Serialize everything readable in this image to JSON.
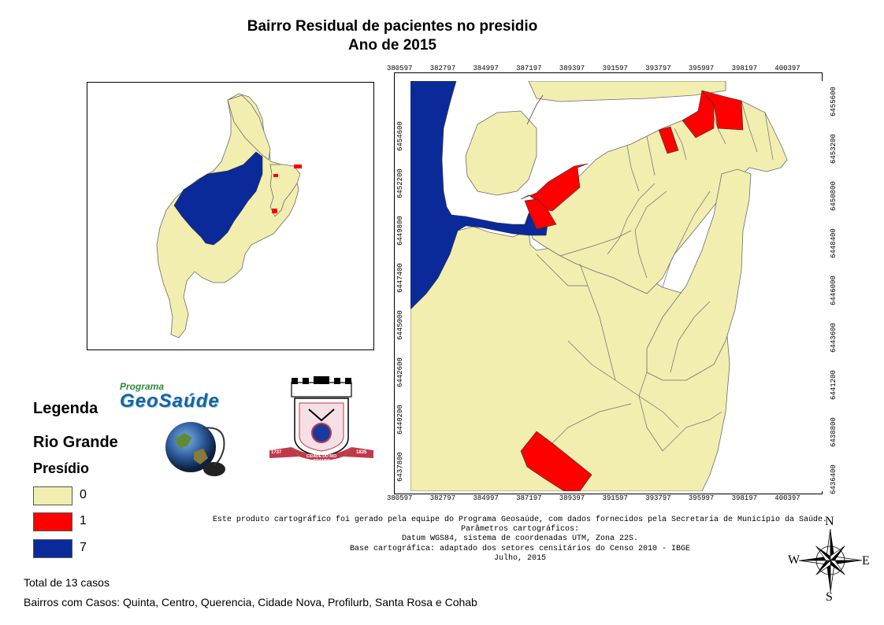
{
  "title": {
    "line1": "Bairro Residual de pacientes no presidio",
    "line2": "Ano de 2015"
  },
  "axes": {
    "x_ticks": [
      "380597",
      "382797",
      "384997",
      "387197",
      "389397",
      "391597",
      "393797",
      "395997",
      "398197",
      "400397"
    ],
    "y_ticks_left": [
      "6437800",
      "6440200",
      "6442600",
      "6445000",
      "6447400",
      "6449800",
      "6452200",
      "6454600"
    ],
    "y_ticks_right": [
      "6436400",
      "6438800",
      "6441200",
      "6443600",
      "6446000",
      "6448400",
      "6450800",
      "6453200",
      "6455600"
    ]
  },
  "legend": {
    "title": "Legenda",
    "region": "Rio Grande",
    "layer": "Presídio",
    "classes": [
      {
        "label": "0",
        "color": "#f2eeb0"
      },
      {
        "label": "1",
        "color": "#ff0000"
      },
      {
        "label": "7",
        "color": "#0a2a9a"
      }
    ]
  },
  "logos": {
    "program_top": "Programa",
    "program_name": "GeoSaúde",
    "seal_left_year": "1737",
    "seal_banner": "CIDADE DO RIO GRANDE",
    "seal_right_year": "1835"
  },
  "credits": {
    "line1": "Este produto cartográfico foi gerado pela equipe do Programa Geosaúde, com dados fornecidos pela Secretaria de Município da Saúde.",
    "line2": "Parâmetros cartográficos:",
    "line3": "Datum WGS84, sistema de coordenadas UTM, Zona 22S.",
    "line4": "Base cartográfica: adaptado dos setores censitários do Censo 2010 - IBGE",
    "line5": "Julho, 2015"
  },
  "compass": {
    "n": "N",
    "s": "S",
    "e": "E",
    "w": "W"
  },
  "footer": {
    "total": "Total de 13 casos",
    "bairros": "Bairros com Casos: Quinta, Centro, Querencia, Cidade Nova, Profilurb, Santa Rosa e Cohab"
  },
  "colors": {
    "zero": "#f2eeb0",
    "one": "#ff0000",
    "seven": "#0a2a9a",
    "outline": "#6b6b6b"
  }
}
